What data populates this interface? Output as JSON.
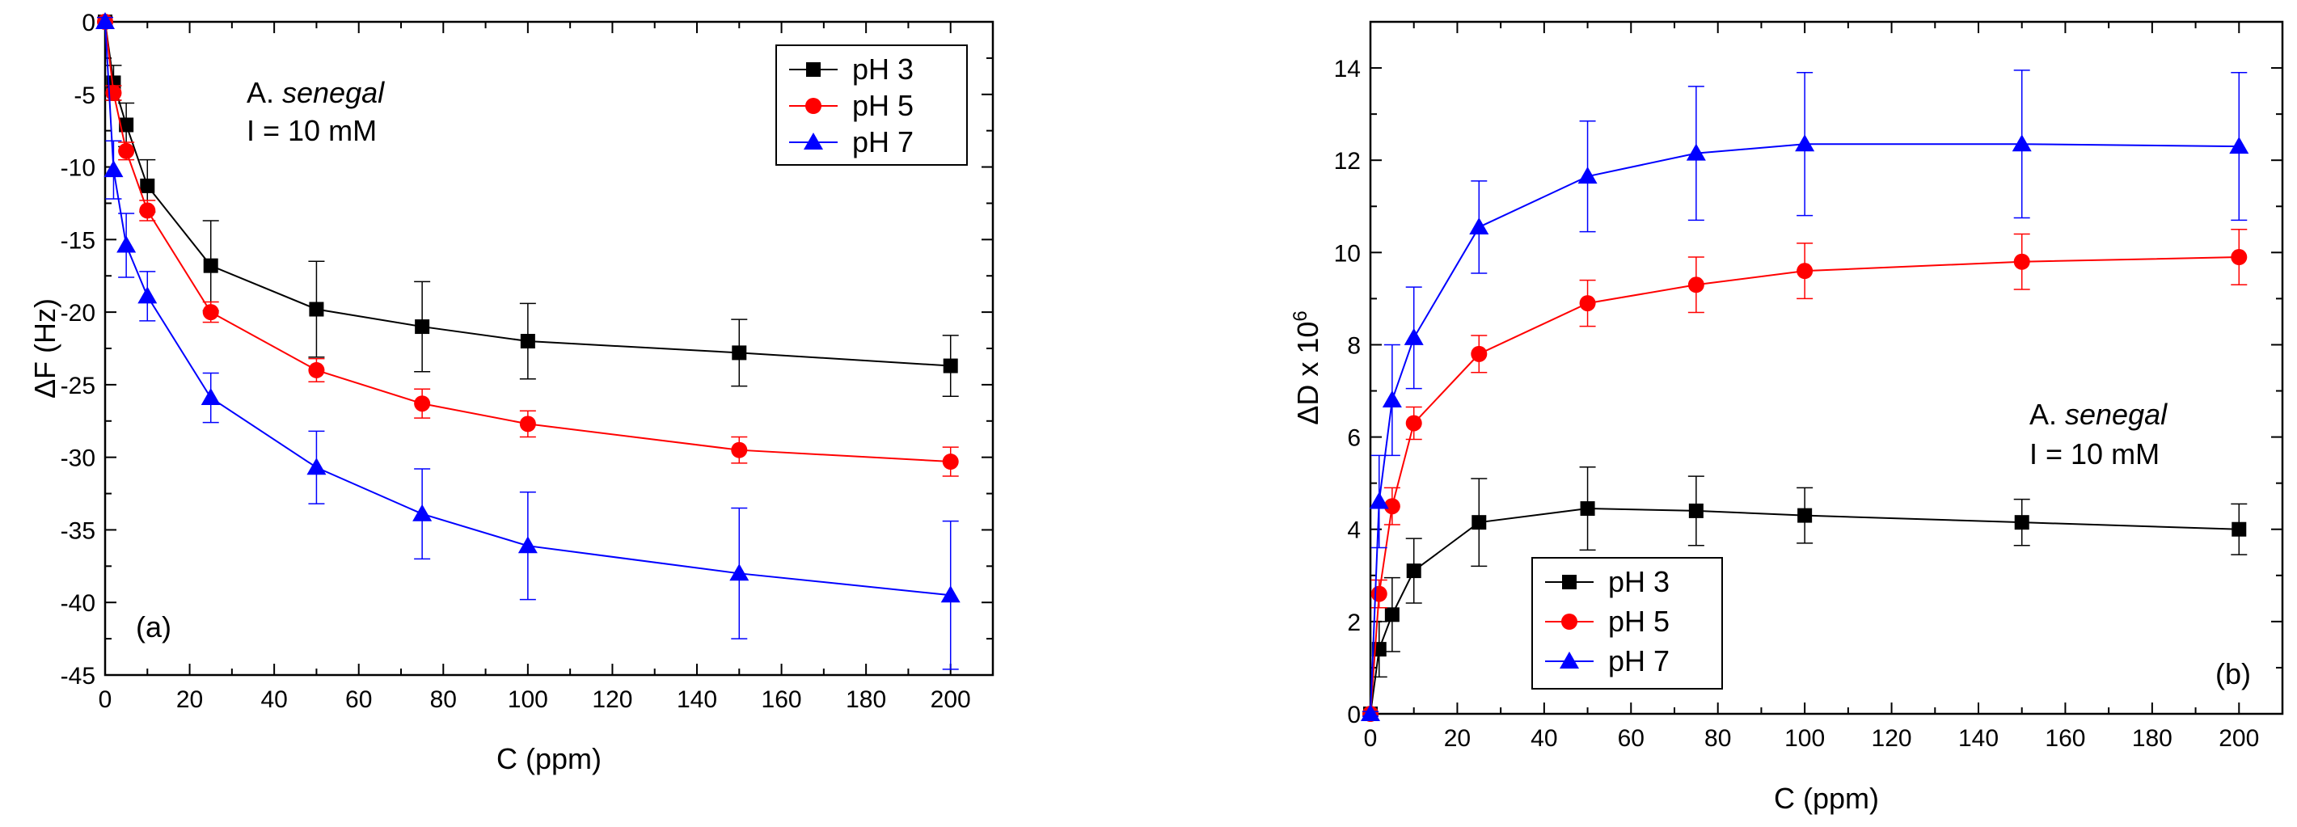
{
  "chart_data": [
    {
      "type": "line",
      "panel_label": "(a)",
      "annotation_prefix": "A. ",
      "annotation_species": "senegal",
      "annotation_line2": "I = 10 mM",
      "xlabel": "C (ppm)",
      "ylabel": "ΔF (Hz)",
      "xlim": [
        0,
        210
      ],
      "ylim": [
        -45,
        0
      ],
      "xticks": [
        0,
        20,
        40,
        60,
        80,
        100,
        120,
        140,
        160,
        180,
        200
      ],
      "yticks": [
        0,
        -5,
        -10,
        -15,
        -20,
        -25,
        -30,
        -35,
        -40,
        -45
      ],
      "legend_position": "top-right",
      "series": [
        {
          "name": "pH 3",
          "color": "#000000",
          "marker": "square",
          "x": [
            0,
            2,
            5,
            10,
            25,
            50,
            75,
            100,
            150,
            200
          ],
          "y": [
            0,
            -4.2,
            -7.1,
            -11.3,
            -16.8,
            -19.8,
            -21.0,
            -22.0,
            -22.8,
            -23.7
          ],
          "err": [
            0.3,
            1.2,
            1.5,
            1.8,
            3.1,
            3.3,
            3.1,
            2.6,
            2.3,
            2.1
          ]
        },
        {
          "name": "pH 5",
          "color": "#ff0000",
          "marker": "circle",
          "x": [
            0,
            2,
            5,
            10,
            25,
            50,
            75,
            100,
            150,
            200
          ],
          "y": [
            0,
            -4.9,
            -8.9,
            -13.0,
            -20.0,
            -24.0,
            -26.3,
            -27.7,
            -29.5,
            -30.3
          ],
          "err": [
            0.3,
            0.5,
            0.6,
            0.7,
            0.7,
            0.8,
            1.0,
            0.9,
            0.9,
            1.0
          ]
        },
        {
          "name": "pH 7",
          "color": "#0000ff",
          "marker": "triangle",
          "x": [
            0,
            2,
            5,
            10,
            25,
            50,
            75,
            100,
            150,
            200
          ],
          "y": [
            0,
            -10.2,
            -15.4,
            -18.9,
            -25.9,
            -30.7,
            -33.9,
            -36.1,
            -38.0,
            -39.5
          ],
          "err": [
            0.3,
            2.0,
            2.2,
            1.7,
            1.7,
            2.5,
            3.1,
            3.7,
            4.5,
            5.1
          ]
        }
      ]
    },
    {
      "type": "line",
      "panel_label": "(b)",
      "annotation_prefix": "A. ",
      "annotation_species": "senegal",
      "annotation_line2": "I = 10 mM",
      "xlabel": "C (ppm)",
      "ylabel_main": "ΔD x 10",
      "ylabel_sup": "6",
      "xlim": [
        0,
        210
      ],
      "ylim": [
        0,
        15
      ],
      "xticks": [
        0,
        20,
        40,
        60,
        80,
        100,
        120,
        140,
        160,
        180,
        200
      ],
      "yticks": [
        0,
        2,
        4,
        6,
        8,
        10,
        12,
        14
      ],
      "legend_position": "bottom-left",
      "series": [
        {
          "name": "pH 3",
          "color": "#000000",
          "marker": "square",
          "x": [
            0,
            2,
            5,
            10,
            25,
            50,
            75,
            100,
            150,
            200
          ],
          "y": [
            0,
            1.4,
            2.15,
            3.1,
            4.15,
            4.45,
            4.4,
            4.3,
            4.15,
            4.0
          ],
          "err": [
            0.05,
            0.6,
            0.8,
            0.7,
            0.95,
            0.9,
            0.75,
            0.6,
            0.5,
            0.55
          ]
        },
        {
          "name": "pH 5",
          "color": "#ff0000",
          "marker": "circle",
          "x": [
            0,
            2,
            5,
            10,
            25,
            50,
            75,
            100,
            150,
            200
          ],
          "y": [
            0,
            2.6,
            4.5,
            6.3,
            7.8,
            8.9,
            9.3,
            9.6,
            9.8,
            9.9
          ],
          "err": [
            0.05,
            0.3,
            0.4,
            0.35,
            0.4,
            0.5,
            0.6,
            0.6,
            0.6,
            0.6
          ]
        },
        {
          "name": "pH 7",
          "color": "#0000ff",
          "marker": "triangle",
          "x": [
            0,
            2,
            5,
            10,
            25,
            50,
            75,
            100,
            150,
            200
          ],
          "y": [
            0,
            4.6,
            6.8,
            8.15,
            10.55,
            11.65,
            12.15,
            12.35,
            12.35,
            12.3
          ],
          "err": [
            0.05,
            1.0,
            1.2,
            1.1,
            1.0,
            1.2,
            1.45,
            1.55,
            1.6,
            1.6
          ]
        }
      ]
    }
  ]
}
